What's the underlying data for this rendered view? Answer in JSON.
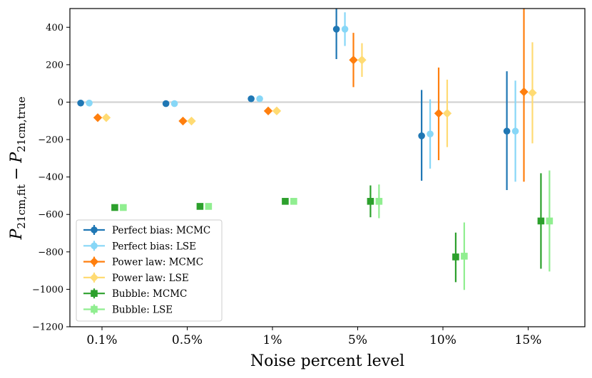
{
  "chart_data": {
    "type": "errorbar",
    "categories": [
      "0.1%",
      "0.5%",
      "1%",
      "5%",
      "10%",
      "15%"
    ],
    "xlabel": "Noise percent level",
    "ylabel": "P_{21cm,fit} − P_{21cm,true}",
    "ylabel_parts": {
      "main1": "P",
      "sub1": "21cm,fit",
      "minus": "−",
      "main2": "P",
      "sub2": "21cm,true"
    },
    "ylim": [
      -1200,
      500
    ],
    "yticks": [
      -1200,
      -1000,
      -800,
      -600,
      -400,
      -200,
      0,
      200,
      400
    ],
    "ytick_labels": [
      "−1200",
      "−1000",
      "−800",
      "−600",
      "−400",
      "−200",
      "0",
      "200",
      "400"
    ],
    "reference_line": 0,
    "legend_position": "lower-left",
    "series": [
      {
        "name": "Perfect bias: MCMC",
        "color": "#1f77b4",
        "marker": "circle",
        "offset": -0.25,
        "values": [
          -5,
          -8,
          18,
          390,
          -180,
          -155
        ],
        "err_low": [
          0,
          0,
          15,
          160,
          240,
          315
        ],
        "err_high": [
          0,
          0,
          15,
          110,
          245,
          320
        ]
      },
      {
        "name": "Perfect bias: LSE",
        "color": "#87d7f7",
        "marker": "circle",
        "offset": -0.15,
        "values": [
          -5,
          -8,
          18,
          390,
          -170,
          -155
        ],
        "err_low": [
          0,
          0,
          8,
          90,
          185,
          270
        ],
        "err_high": [
          0,
          0,
          8,
          90,
          185,
          270
        ]
      },
      {
        "name": "Power law: MCMC",
        "color": "#ff7f0e",
        "marker": "diamond",
        "offset": -0.05,
        "values": [
          -83,
          -101,
          -47,
          225,
          -60,
          55
        ],
        "err_low": [
          0,
          0,
          0,
          145,
          250,
          480
        ],
        "err_high": [
          0,
          0,
          0,
          145,
          245,
          485
        ]
      },
      {
        "name": "Power law: LSE",
        "color": "#ffdb73",
        "marker": "diamond",
        "offset": 0.05,
        "values": [
          -83,
          -101,
          -47,
          225,
          -60,
          50
        ],
        "err_low": [
          0,
          0,
          0,
          90,
          180,
          270
        ],
        "err_high": [
          0,
          0,
          0,
          90,
          180,
          270
        ]
      },
      {
        "name": "Bubble: MCMC",
        "color": "#2ca02c",
        "marker": "square",
        "offset": 0.15,
        "values": [
          -563,
          -557,
          -530,
          -530,
          -827,
          -635
        ],
        "err_low": [
          0,
          0,
          0,
          85,
          135,
          255
        ],
        "err_high": [
          0,
          0,
          0,
          85,
          130,
          255
        ]
      },
      {
        "name": "Bubble: LSE",
        "color": "#90ee90",
        "marker": "square",
        "offset": 0.25,
        "values": [
          -563,
          -557,
          -530,
          -530,
          -823,
          -635
        ],
        "err_low": [
          0,
          0,
          0,
          90,
          180,
          270
        ],
        "err_high": [
          0,
          0,
          0,
          90,
          180,
          270
        ]
      }
    ]
  }
}
